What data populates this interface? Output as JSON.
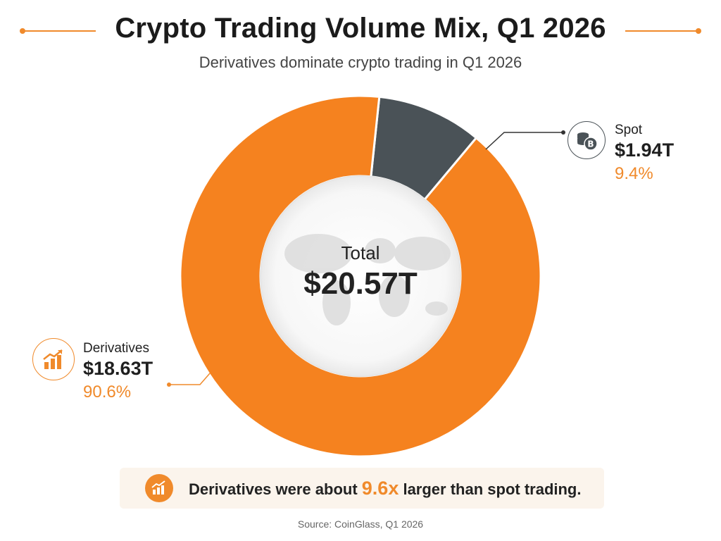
{
  "header": {
    "title": "Crypto Trading Volume Mix, Q1 2026",
    "subtitle": "Derivatives dominate crypto trading in Q1 2026"
  },
  "colors": {
    "accent": "#f08a2b",
    "derivatives": "#f5821f",
    "spot": "#4a5257"
  },
  "center": {
    "label": "Total",
    "value": "$20.57T"
  },
  "labels": {
    "spot": {
      "name": "Spot",
      "value": "$1.94T",
      "percent": "9.4%",
      "icon": "coins-bitcoin-icon"
    },
    "derivatives": {
      "name": "Derivatives",
      "value": "$18.63T",
      "percent": "90.6%",
      "icon": "growth-chart-icon"
    }
  },
  "callout": {
    "prefix": "Derivatives were about ",
    "highlight": "9.6x",
    "suffix": " larger than spot trading.",
    "icon": "growth-chart-icon"
  },
  "source": "Source: CoinGlass, Q1 2026",
  "chart_data": {
    "type": "pie",
    "title": "Crypto Trading Volume Mix, Q1 2026",
    "subtitle": "Derivatives dominate crypto trading in Q1 2026",
    "donut": true,
    "categories": [
      "Spot",
      "Derivatives"
    ],
    "values": [
      1.94,
      18.63
    ],
    "percents": [
      9.4,
      90.6
    ],
    "unit": "$T",
    "total": 20.57,
    "colors": [
      "#4a5257",
      "#f5821f"
    ]
  }
}
